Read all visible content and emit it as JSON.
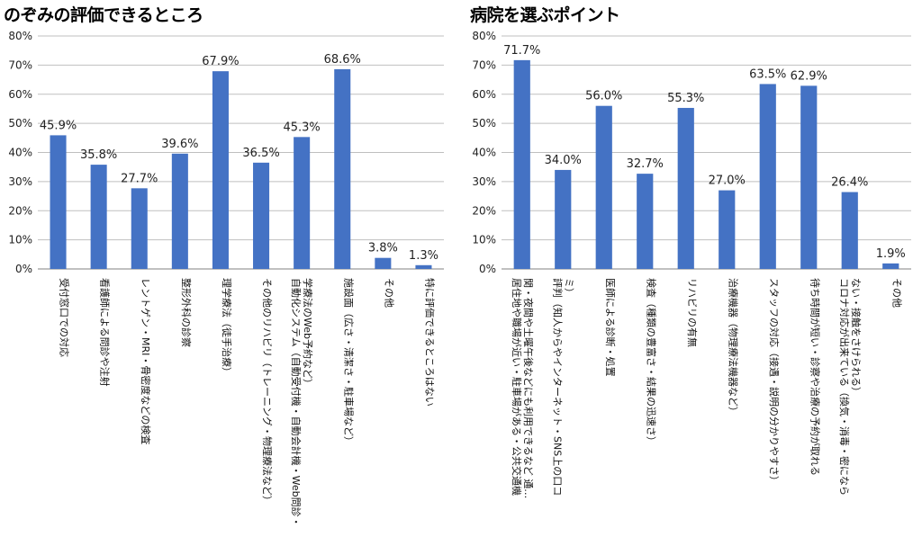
{
  "chart_data": [
    {
      "type": "bar",
      "title": "のぞみの評価できるところ",
      "ylim": [
        0,
        80
      ],
      "yticks": [
        "0%",
        "10%",
        "20%",
        "30%",
        "40%",
        "50%",
        "60%",
        "70%",
        "80%"
      ],
      "categories": [
        [
          "受付窓口での対応"
        ],
        [
          "看護師による問診や注射"
        ],
        [
          "レントゲン・MRI・骨密度などの検査"
        ],
        [
          "整形外科の診察"
        ],
        [
          "理学療法（徒手治療）"
        ],
        [
          "その他のリハビリ（トレーニング・物理療法など）"
        ],
        [
          "自動化システム（自動受付機・自動会計機・Web問診・",
          "学療法のWeb予約など）"
        ],
        [
          "施設面（広さ・清潔さ・駐車場など）"
        ],
        [
          "その他"
        ],
        [
          "特に評価できるところはない"
        ]
      ],
      "values": [
        45.9,
        35.8,
        27.7,
        39.6,
        67.9,
        36.5,
        45.3,
        68.6,
        3.8,
        1.3
      ],
      "value_labels": [
        "45.9%",
        "35.8%",
        "27.7%",
        "39.6%",
        "67.9%",
        "36.5%",
        "45.3%",
        "68.6%",
        "3.8%",
        "1.3%"
      ],
      "bar_color": "#4472c4",
      "grid": true
    },
    {
      "type": "bar",
      "title": "病院を選ぶポイント",
      "ylim": [
        0,
        80
      ],
      "yticks": [
        "0%",
        "10%",
        "20%",
        "30%",
        "40%",
        "50%",
        "60%",
        "70%",
        "80%"
      ],
      "categories": [
        [
          "居住地や職場が近い・駐車場がある・公共交通機",
          "関・夜間や土曜午後などにも利用できるなど 通…"
        ],
        [
          "評判（知人からやインターネット・SNS上の口コ",
          "ミ）"
        ],
        [
          "医師による診断・処置"
        ],
        [
          "検査（種類の豊富さ・結果の迅速さ）"
        ],
        [
          "リハビリの有無"
        ],
        [
          "治療機器（物理療法機器など）"
        ],
        [
          "スタッフの対応（接遇・説明の分かりやすさ）"
        ],
        [
          "待ち時間が短い・診察や治療の予約が取れる"
        ],
        [
          "コロナ対応が出来ている（換気・消毒・密になら",
          "ない・接触をさけられる）"
        ],
        [
          "その他"
        ]
      ],
      "values": [
        71.7,
        34.0,
        56.0,
        32.7,
        55.3,
        27.0,
        63.5,
        62.9,
        26.4,
        1.9
      ],
      "value_labels": [
        "71.7%",
        "34.0%",
        "56.0%",
        "32.7%",
        "55.3%",
        "27.0%",
        "63.5%",
        "62.9%",
        "26.4%",
        "1.9%"
      ],
      "bar_color": "#4472c4",
      "grid": true
    }
  ]
}
